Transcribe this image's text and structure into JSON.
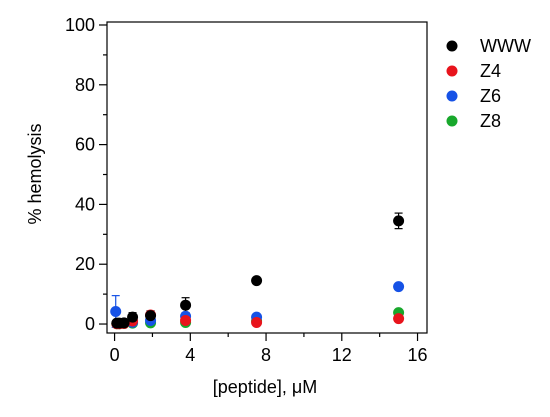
{
  "chart_data": {
    "type": "scatter",
    "xlabel": "[peptide], μM",
    "ylabel": "% hemolysis",
    "xlim": [
      -0.4,
      16.5
    ],
    "ylim": [
      -3,
      101
    ],
    "x_ticks": [
      0,
      4,
      8,
      12,
      16
    ],
    "y_ticks": [
      0,
      20,
      40,
      60,
      80,
      100
    ],
    "grid": false,
    "legend_position": "right",
    "series": [
      {
        "name": "WWW",
        "color": "#000000",
        "points": [
          {
            "x": 0.12,
            "y": 0.3,
            "err": 0.5
          },
          {
            "x": 0.25,
            "y": 0.3,
            "err": 0.5
          },
          {
            "x": 0.5,
            "y": 0.4,
            "err": 0.6
          },
          {
            "x": 0.95,
            "y": 2.3,
            "err": 1.5
          },
          {
            "x": 1.9,
            "y": 2.8,
            "err": 1.6
          },
          {
            "x": 3.75,
            "y": 6.3,
            "err": 2.5
          },
          {
            "x": 7.5,
            "y": 14.5,
            "err": 0.9
          },
          {
            "x": 15,
            "y": 34.5,
            "err": 2.6
          }
        ]
      },
      {
        "name": "Z4",
        "color": "#e8141c",
        "points": [
          {
            "x": 0.12,
            "y": 0.1,
            "err": 0
          },
          {
            "x": 0.25,
            "y": 0.1,
            "err": 0
          },
          {
            "x": 0.5,
            "y": 0.2,
            "err": 0
          },
          {
            "x": 0.95,
            "y": 1.0,
            "err": 0.8
          },
          {
            "x": 1.9,
            "y": 3.0,
            "err": 1.2
          },
          {
            "x": 3.75,
            "y": 1.2,
            "err": 0
          },
          {
            "x": 7.5,
            "y": 0.5,
            "err": 0
          },
          {
            "x": 15,
            "y": 1.8,
            "err": 0
          }
        ]
      },
      {
        "name": "Z6",
        "color": "#1652e6",
        "points": [
          {
            "x": 0.06,
            "y": 4.2,
            "err": 5.3
          },
          {
            "x": 0.25,
            "y": 0.2,
            "err": 0
          },
          {
            "x": 0.5,
            "y": 0.3,
            "err": 0
          },
          {
            "x": 0.95,
            "y": 0.6,
            "err": 0
          },
          {
            "x": 1.9,
            "y": 1.2,
            "err": 0
          },
          {
            "x": 3.75,
            "y": 2.6,
            "err": 0
          },
          {
            "x": 7.5,
            "y": 2.3,
            "err": 0
          },
          {
            "x": 15,
            "y": 12.5,
            "err": 0.8
          }
        ]
      },
      {
        "name": "Z8",
        "color": "#18a82c",
        "points": [
          {
            "x": 0.12,
            "y": 0.1,
            "err": 0
          },
          {
            "x": 0.25,
            "y": 0.1,
            "err": 0
          },
          {
            "x": 0.5,
            "y": 0.2,
            "err": 0
          },
          {
            "x": 0.95,
            "y": 0.3,
            "err": 0
          },
          {
            "x": 1.9,
            "y": 0.4,
            "err": 0
          },
          {
            "x": 3.75,
            "y": 0.5,
            "err": 0
          },
          {
            "x": 7.5,
            "y": 1.0,
            "err": 0
          },
          {
            "x": 15,
            "y": 3.8,
            "err": 0
          }
        ]
      }
    ]
  }
}
